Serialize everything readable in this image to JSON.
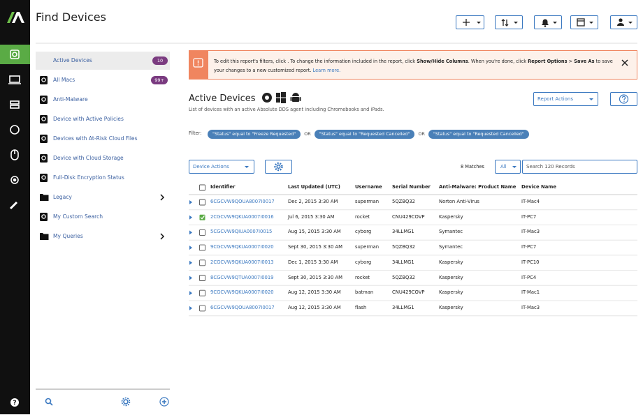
{
  "header": {
    "title": "Find Devices"
  },
  "nav": {
    "items": [
      {
        "label": "Active Devices",
        "badge": "10",
        "icon": "report",
        "active": true
      },
      {
        "label": "All Macs",
        "badge": "99+",
        "icon": "report"
      },
      {
        "label": "Anti-Malware",
        "icon": "report"
      },
      {
        "label": "Device with Active Policies",
        "icon": "report"
      },
      {
        "label": "Devices with At-Risk Cloud Files",
        "icon": "report"
      },
      {
        "label": "Device with Cloud Storage",
        "icon": "report"
      },
      {
        "label": "Full-Disk Encryption Status",
        "icon": "report"
      },
      {
        "label": "Legacy",
        "icon": "folder",
        "expandable": true
      },
      {
        "label": "My Custom Search",
        "icon": "report"
      },
      {
        "label": "My Queries",
        "icon": "folder",
        "expandable": true
      }
    ]
  },
  "banner": {
    "segments": [
      {
        "text": "To edit this report's filters, click . To change the information included in the report, click "
      },
      {
        "text": "Show/Hide Columns",
        "bold": true
      },
      {
        "text": ". When you're done, click "
      },
      {
        "text": "Report Options",
        "bold": true
      },
      {
        "text": " > "
      },
      {
        "text": "Save As",
        "bold": true
      },
      {
        "text": " to save your changes to a new customized report. "
      },
      {
        "text": "Learn more.",
        "link": true
      }
    ]
  },
  "report": {
    "title": "Active Devices",
    "subtitle": "List of devices with an active Absolute DDS agent including Chromebooks and iPads.",
    "actions": "Report Actions"
  },
  "filters": {
    "label": "Filter:",
    "chips": [
      "\"Status\" equal to \"Freeze Requested\"",
      "\"Status\" equal to \"Requested Cancelled\"",
      "\"Status\" equal to \"Requested Cancelled\""
    ],
    "connectors": [
      "OR",
      "OR"
    ]
  },
  "toolbar": {
    "device_actions": "Device Actions",
    "matches": "8 Matches",
    "scope": "All",
    "search_placeholder": "Search 120 Records"
  },
  "table": {
    "columns": [
      "Identifier",
      "Last Updated (UTC)",
      "Username",
      "Serial Number",
      "Anti-Malware: Product Name",
      "Device Name"
    ],
    "rows": [
      {
        "cells": [
          "6CGCVW9QOUA8007I0017",
          "Dec 2, 2015 3:30 AM",
          "superman",
          "5QZBQ32",
          "Norton Anti-Virus",
          "IT-Mac4"
        ]
      },
      {
        "cells": [
          "2CGCVW9QKUA0007I0016",
          "Jul 6, 2015 3:30 AM",
          "rocket",
          "CNU429COVP",
          "Kaspersky",
          "IT-PC7"
        ],
        "selected": true
      },
      {
        "cells": [
          "5CGCVW9QIUA0007I0015",
          "Aug 15, 2015 3:30 AM",
          "cyborg",
          "34LLMG1",
          "Symantec",
          "IT-Mac3"
        ]
      },
      {
        "cells": [
          "9CGCVW9QKUA0007I0020",
          "Sept 30, 2015 3:30 AM",
          "superman",
          "5QZBQ32",
          "Symantec",
          "IT-PC7"
        ]
      },
      {
        "cells": [
          "2CGCVW9QKUA0007I0013",
          "Dec 1, 2015 3:30 AM",
          "cyborg",
          "34LLMG1",
          "Kaspersky",
          "IT-PC10"
        ]
      },
      {
        "cells": [
          "8CGCVW9QTUA0007I0019",
          "Sept 30, 2015 3:30 AM",
          "rocket",
          "5QZBQ32",
          "Kaspersky",
          "IT-PC4"
        ]
      },
      {
        "cells": [
          "9CGCVW9QKUA0007I0020",
          "Aug 12, 2015 3:30 AM",
          "batman",
          "CNU429COVP",
          "Kaspersky",
          "IT-Mac1"
        ]
      },
      {
        "cells": [
          "6CGCVW9QOUA8007I0017",
          "Aug 12, 2015 3:30 AM",
          "flash",
          "34LLMG1",
          "Kaspersky",
          "IT-Mac3"
        ]
      }
    ]
  }
}
